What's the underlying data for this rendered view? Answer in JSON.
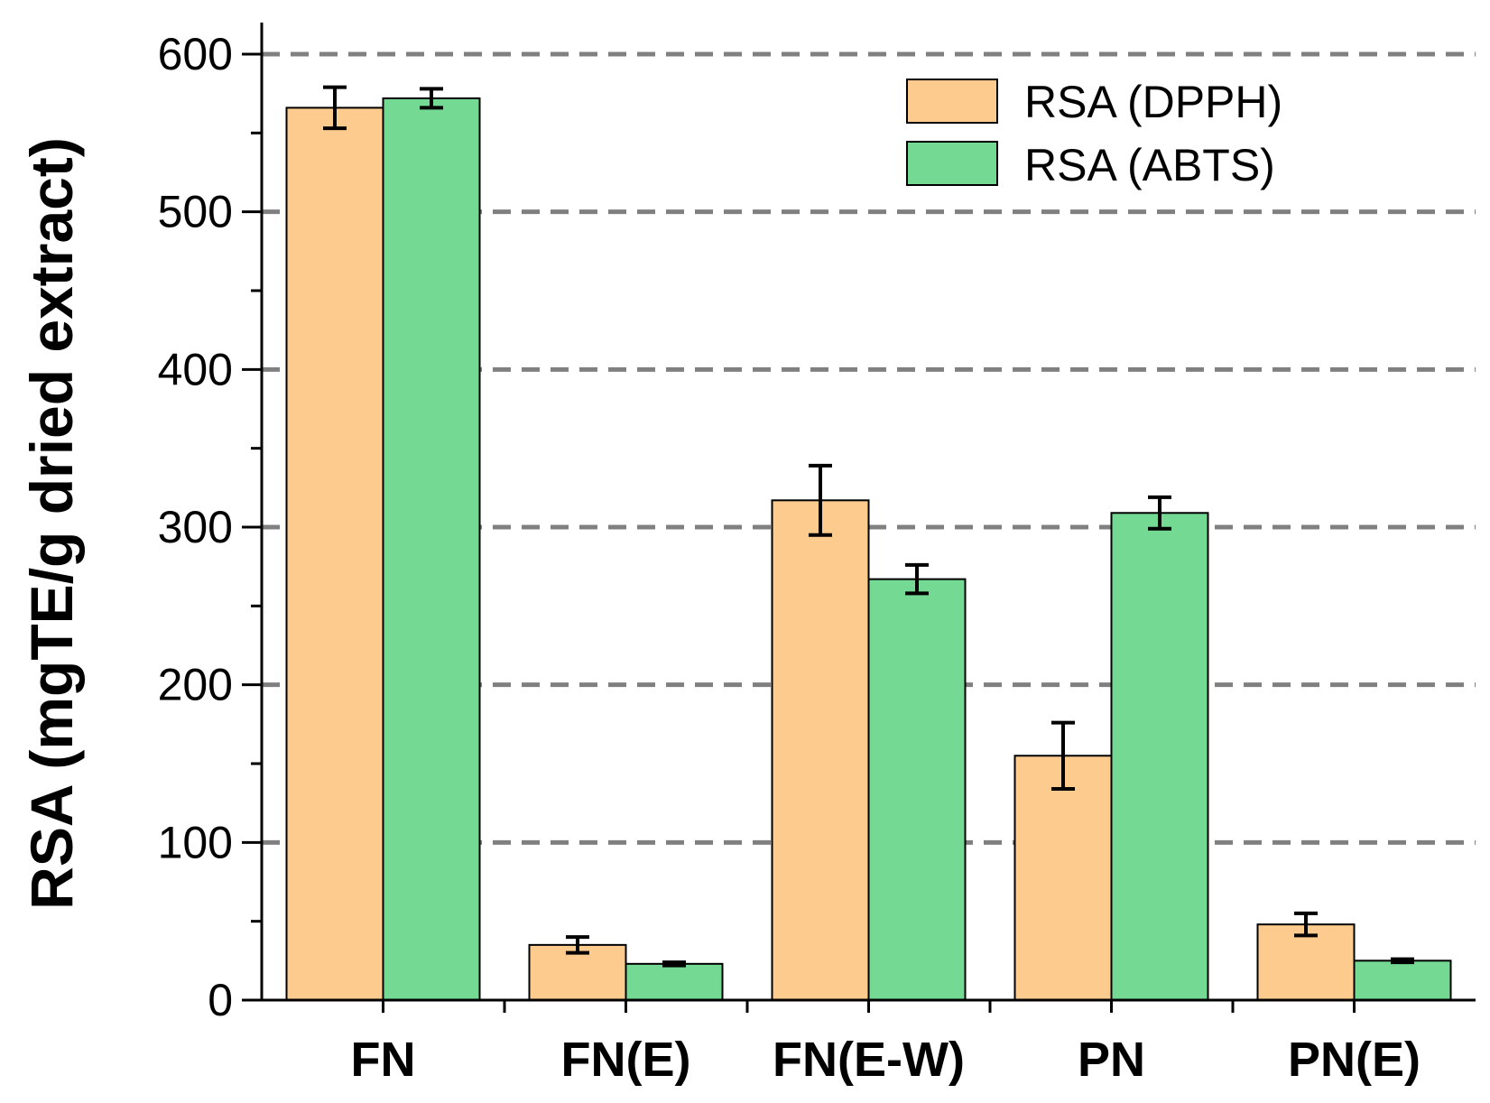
{
  "chart_data": {
    "type": "bar",
    "title": "",
    "xlabel": "",
    "ylabel": "RSA (mgTE/g dried extract)",
    "ylim": [
      0,
      620
    ],
    "yticks": [
      0,
      100,
      200,
      300,
      400,
      500,
      600
    ],
    "grid": "dashed horizontal at major ticks",
    "legend_position": "top-right",
    "categories": [
      "FN",
      "FN(E)",
      "FN(E-W)",
      "PN",
      "PN(E)"
    ],
    "series": [
      {
        "name": "RSA (DPPH)",
        "color": "#FDCB8E",
        "values": [
          566,
          35,
          317,
          155,
          48
        ],
        "errors": [
          13,
          5,
          22,
          21,
          7
        ]
      },
      {
        "name": "RSA (ABTS)",
        "color": "#73D993",
        "values": [
          572,
          23,
          267,
          309,
          25
        ],
        "errors": [
          6,
          1,
          9,
          10,
          1
        ]
      }
    ]
  }
}
